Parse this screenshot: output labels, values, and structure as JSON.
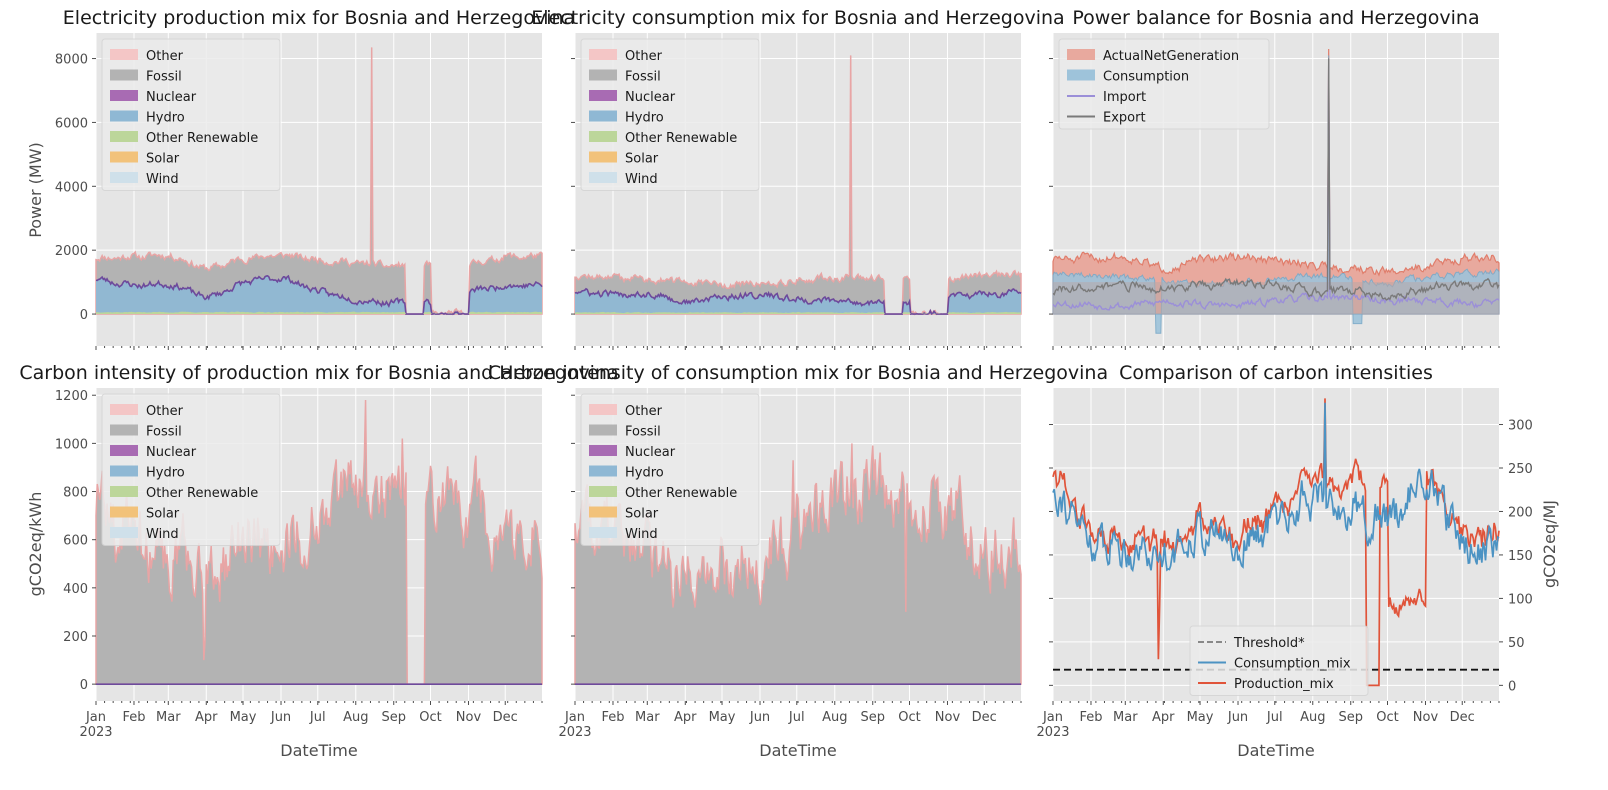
{
  "figure": {
    "months": [
      "Jan",
      "Feb",
      "Mar",
      "Apr",
      "May",
      "Jun",
      "Jul",
      "Aug",
      "Sep",
      "Oct",
      "Nov",
      "Dec"
    ],
    "year_label": "2023",
    "xlabel": "DateTime"
  },
  "colors": {
    "Other": "#f4c6c6",
    "Other_line": "#e8a5a5",
    "Fossil": "#b3b3b3",
    "Nuclear": "#a86bb3",
    "Hydro": "#8fb8d4",
    "Other Renewable": "#bcd69a",
    "Solar": "#f2c27a",
    "Wind": "#cfe0ea",
    "ActualNetGeneration": "#e8a99e",
    "Consumption": "#9ec3da",
    "Import": "#9b8fd8",
    "Export": "#7a7a7a",
    "Threshold": "#111111",
    "Consumption_mix": "#4c93c3",
    "Production_mix": "#e0543a"
  },
  "chart_data": [
    {
      "id": "prod_mix",
      "type": "area",
      "title": "Electricity production mix for Bosnia and Herzegovina",
      "ylabel": "Power (MW)",
      "xlabel": "DateTime",
      "yticks": [
        0,
        2000,
        4000,
        6000,
        8000
      ],
      "ylim": [
        -1000,
        8800
      ],
      "x_range": [
        "2023-01-01",
        "2023-12-31"
      ],
      "legend": [
        "Other",
        "Fossil",
        "Nuclear",
        "Hydro",
        "Other Renewable",
        "Solar",
        "Wind"
      ],
      "legend_position": "upper-left",
      "outage": {
        "from": "2023-09-11",
        "to": "2023-09-25"
      },
      "spike": {
        "date": "2023-08-14",
        "value": 8350
      },
      "series": [
        {
          "name": "Total",
          "monthly": [
            1750,
            1800,
            1850,
            1400,
            1750,
            1850,
            1700,
            1600,
            1500,
            0,
            1550,
            1800
          ]
        },
        {
          "name": "Hydro",
          "monthly": [
            1100,
            900,
            950,
            500,
            1000,
            1150,
            700,
            450,
            350,
            0,
            700,
            900
          ]
        },
        {
          "name": "Other Renewable",
          "monthly": [
            60,
            60,
            60,
            60,
            60,
            60,
            60,
            60,
            60,
            0,
            60,
            60
          ]
        }
      ]
    },
    {
      "id": "cons_mix",
      "type": "area",
      "title": "Electricity consumption mix for Bosnia and Herzegovina",
      "xlabel": "DateTime",
      "yticks": [
        0,
        2000,
        4000,
        6000,
        8000
      ],
      "ylim": [
        -1000,
        8800
      ],
      "legend": [
        "Other",
        "Fossil",
        "Nuclear",
        "Hydro",
        "Other Renewable",
        "Solar",
        "Wind"
      ],
      "legend_position": "upper-left",
      "outage": {
        "from": "2023-09-11",
        "to": "2023-09-25"
      },
      "spike": {
        "date": "2023-08-14",
        "value": 8100
      },
      "series": [
        {
          "name": "Total",
          "monthly": [
            1200,
            1150,
            1100,
            1000,
            900,
            950,
            1050,
            1150,
            1100,
            0,
            1100,
            1250
          ]
        },
        {
          "name": "Hydro",
          "monthly": [
            700,
            600,
            650,
            350,
            550,
            600,
            450,
            400,
            350,
            0,
            500,
            650
          ]
        },
        {
          "name": "Other Renewable",
          "monthly": [
            50,
            50,
            50,
            50,
            50,
            50,
            50,
            50,
            50,
            0,
            50,
            50
          ]
        }
      ]
    },
    {
      "id": "power_balance",
      "type": "area",
      "title": "Power balance for Bosnia and Herzegovina",
      "xlabel": "DateTime",
      "yticks": [
        0,
        2000,
        4000,
        6000,
        8000
      ],
      "ylim": [
        -1000,
        8800
      ],
      "legend": [
        "ActualNetGeneration",
        "Consumption",
        "Import",
        "Export"
      ],
      "legend_position": "upper-left",
      "spike": {
        "date": "2023-08-14",
        "value": 8300
      },
      "series": [
        {
          "name": "ActualNetGeneration",
          "monthly": [
            1700,
            1750,
            1800,
            1400,
            1700,
            1800,
            1650,
            1550,
            1450,
            1300,
            1500,
            1750
          ]
        },
        {
          "name": "Consumption",
          "monthly": [
            1250,
            1200,
            1150,
            1050,
            950,
            1000,
            1100,
            1200,
            1150,
            950,
            1150,
            1300
          ]
        },
        {
          "name": "Import",
          "monthly": [
            350,
            300,
            250,
            400,
            300,
            250,
            450,
            500,
            550,
            400,
            450,
            350
          ]
        },
        {
          "name": "Export",
          "monthly": [
            700,
            850,
            900,
            800,
            900,
            1000,
            900,
            700,
            750,
            500,
            800,
            900
          ]
        }
      ]
    },
    {
      "id": "ci_prod",
      "type": "area",
      "title": "Carbon intensity of production mix for Bosnia and Herzegovina",
      "ylabel": "gCO2eq/kWh",
      "xlabel": "DateTime",
      "yticks": [
        0,
        200,
        400,
        600,
        800,
        1000,
        1200
      ],
      "ylim": [
        -70,
        1230
      ],
      "legend": [
        "Other",
        "Fossil",
        "Nuclear",
        "Hydro",
        "Other Renewable",
        "Solar",
        "Wind"
      ],
      "legend_position": "upper-left",
      "series": [
        {
          "name": "Total",
          "monthly": [
            750,
            600,
            550,
            450,
            600,
            550,
            700,
            850,
            850,
            800,
            750,
            600
          ]
        }
      ]
    },
    {
      "id": "ci_cons",
      "type": "area",
      "title": "Carbon intensity of consumption mix for Bosnia and Herzegovina",
      "xlabel": "DateTime",
      "yticks": [
        0,
        200,
        400,
        600,
        800,
        1000,
        1200
      ],
      "ylim": [
        -70,
        1230
      ],
      "legend": [
        "Other",
        "Fossil",
        "Nuclear",
        "Hydro",
        "Other Renewable",
        "Solar",
        "Wind"
      ],
      "legend_position": "upper-left",
      "series": [
        {
          "name": "Total",
          "monthly": [
            720,
            620,
            560,
            480,
            500,
            520,
            650,
            800,
            800,
            750,
            720,
            560
          ]
        }
      ]
    },
    {
      "id": "ci_compare",
      "type": "line",
      "title": "Comparison of carbon intensities",
      "ylabel": "gCO2eq/MJ",
      "xlabel": "DateTime",
      "yticks": [
        0,
        50,
        100,
        150,
        200,
        250,
        300
      ],
      "ylim": [
        -18,
        342
      ],
      "legend": [
        "Threshold*",
        "Consumption_mix",
        "Production_mix"
      ],
      "legend_position": "lower-center",
      "threshold": 18,
      "series": [
        {
          "name": "Consumption_mix",
          "monthly": [
            230,
            165,
            160,
            150,
            180,
            160,
            190,
            220,
            200,
            190,
            240,
            160
          ]
        },
        {
          "name": "Production_mix",
          "monthly": [
            250,
            170,
            165,
            160,
            190,
            170,
            205,
            240,
            250,
            0,
            255,
            175
          ]
        }
      ]
    }
  ]
}
